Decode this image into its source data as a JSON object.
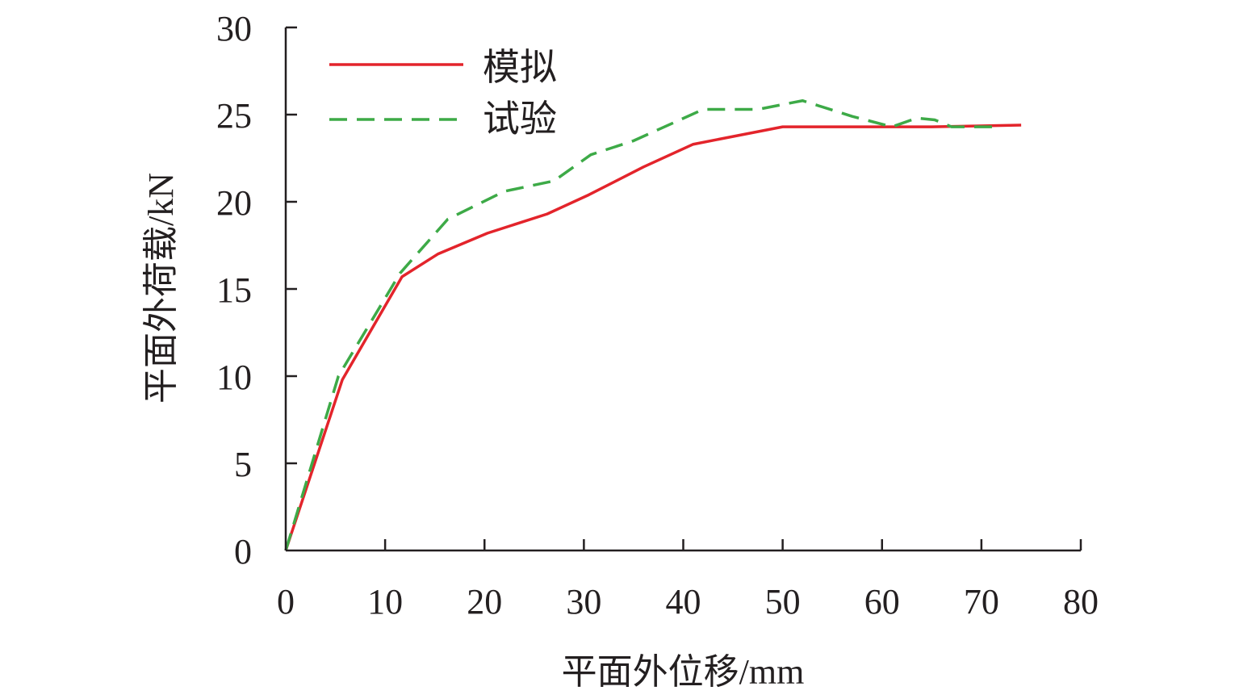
{
  "chart_data": {
    "type": "line",
    "title": "",
    "xlabel": "平面外位移/mm",
    "ylabel": "平面外荷载/kN",
    "xlim": [
      0,
      80
    ],
    "ylim": [
      0,
      30
    ],
    "xticks": [
      0,
      10,
      20,
      30,
      40,
      50,
      60,
      70,
      80
    ],
    "yticks": [
      0,
      5,
      10,
      15,
      20,
      25,
      30
    ],
    "grid": false,
    "legend_position": "top-left",
    "series": [
      {
        "name": "模拟",
        "color": "#e3242b",
        "style": "solid",
        "x": [
          0,
          5.7,
          11.7,
          15.3,
          20.3,
          26.3,
          30.5,
          36.0,
          41.0,
          50.0,
          60.0,
          65.0,
          74.0
        ],
        "y": [
          0,
          9.8,
          15.7,
          17.0,
          18.2,
          19.3,
          20.4,
          22.0,
          23.3,
          24.3,
          24.3,
          24.3,
          24.4
        ]
      },
      {
        "name": "试验",
        "color": "#3daa47",
        "style": "dashed",
        "x": [
          0,
          5.3,
          11.5,
          16.3,
          22.0,
          27.0,
          30.7,
          35.0,
          42.0,
          47.5,
          52.0,
          57.0,
          61.0,
          63.5,
          65.3,
          67.0,
          70.0,
          72.0
        ],
        "y": [
          0,
          10.0,
          15.9,
          19.0,
          20.6,
          21.2,
          22.7,
          23.5,
          25.3,
          25.3,
          25.8,
          24.9,
          24.3,
          24.8,
          24.7,
          24.3,
          24.3,
          24.3
        ]
      }
    ]
  }
}
